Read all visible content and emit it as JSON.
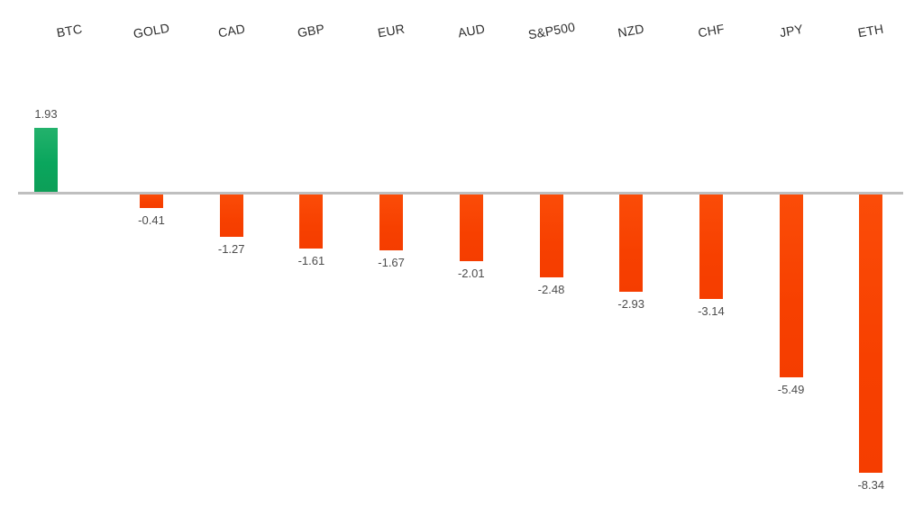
{
  "chart_data": {
    "type": "bar",
    "title": "",
    "xlabel": "",
    "ylabel": "",
    "categories": [
      "BTC",
      "GOLD",
      "CAD",
      "GBP",
      "EUR",
      "AUD",
      "S&P500",
      "NZD",
      "CHF",
      "JPY",
      "ETH"
    ],
    "values": [
      1.93,
      -0.41,
      -1.27,
      -1.61,
      -1.67,
      -2.01,
      -2.48,
      -2.93,
      -3.14,
      -5.49,
      -8.34
    ],
    "data_labels": [
      "1.93",
      "-0.41",
      "-1.27",
      "-1.61",
      "-1.67",
      "-2.01",
      "-2.48",
      "-2.93",
      "-3.14",
      "-5.49",
      "-8.34"
    ],
    "baseline": 0,
    "ylim": [
      -9,
      3
    ],
    "gridlines": false,
    "legend_position": "none",
    "category_label_rotation_deg": -10,
    "positive_color": "#0ba95e",
    "negative_color": "#f74000",
    "axis_line_color": "#bfbfbf",
    "category_label_color": "#2e2e2e",
    "value_label_color": "#4c4c4c",
    "background_color": "#ffffff"
  }
}
